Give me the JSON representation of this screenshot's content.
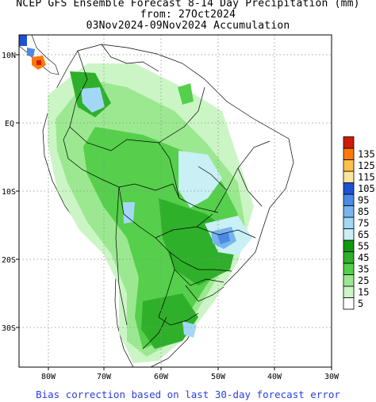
{
  "title_line1": "NCEP GFS Ensemble Forecast 8-14 Day Precipitation (mm)",
  "title_line2": "from: 27Oct2024",
  "title_line3": "03Nov2024-09Nov2024 Accumulation",
  "lat_labels": [
    "10N",
    "EQ",
    "10S",
    "20S",
    "30S"
  ],
  "lon_labels": [
    "80W",
    "70W",
    "60W",
    "50W",
    "40W",
    "30W"
  ],
  "colorbar": [
    {
      "value": "5",
      "color": "#ffffff"
    },
    {
      "value": "15",
      "color": "#ccf5c6"
    },
    {
      "value": "25",
      "color": "#9be890"
    },
    {
      "value": "35",
      "color": "#56cf4c"
    },
    {
      "value": "45",
      "color": "#2fb02a"
    },
    {
      "value": "55",
      "color": "#109810"
    },
    {
      "value": "65",
      "color": "#c8f0f5"
    },
    {
      "value": "75",
      "color": "#a2d8f5"
    },
    {
      "value": "85",
      "color": "#78b4ee"
    },
    {
      "value": "95",
      "color": "#4c88e6"
    },
    {
      "value": "105",
      "color": "#2050d2"
    },
    {
      "value": "115",
      "color": "#fbe6a0"
    },
    {
      "value": "125",
      "color": "#fdc04a"
    },
    {
      "value": "135",
      "color": "#fd7a0a"
    },
    {
      "value": "",
      "color": "#cf1a0a"
    }
  ],
  "footer": "Bias correction based on last 30-day forecast error"
}
